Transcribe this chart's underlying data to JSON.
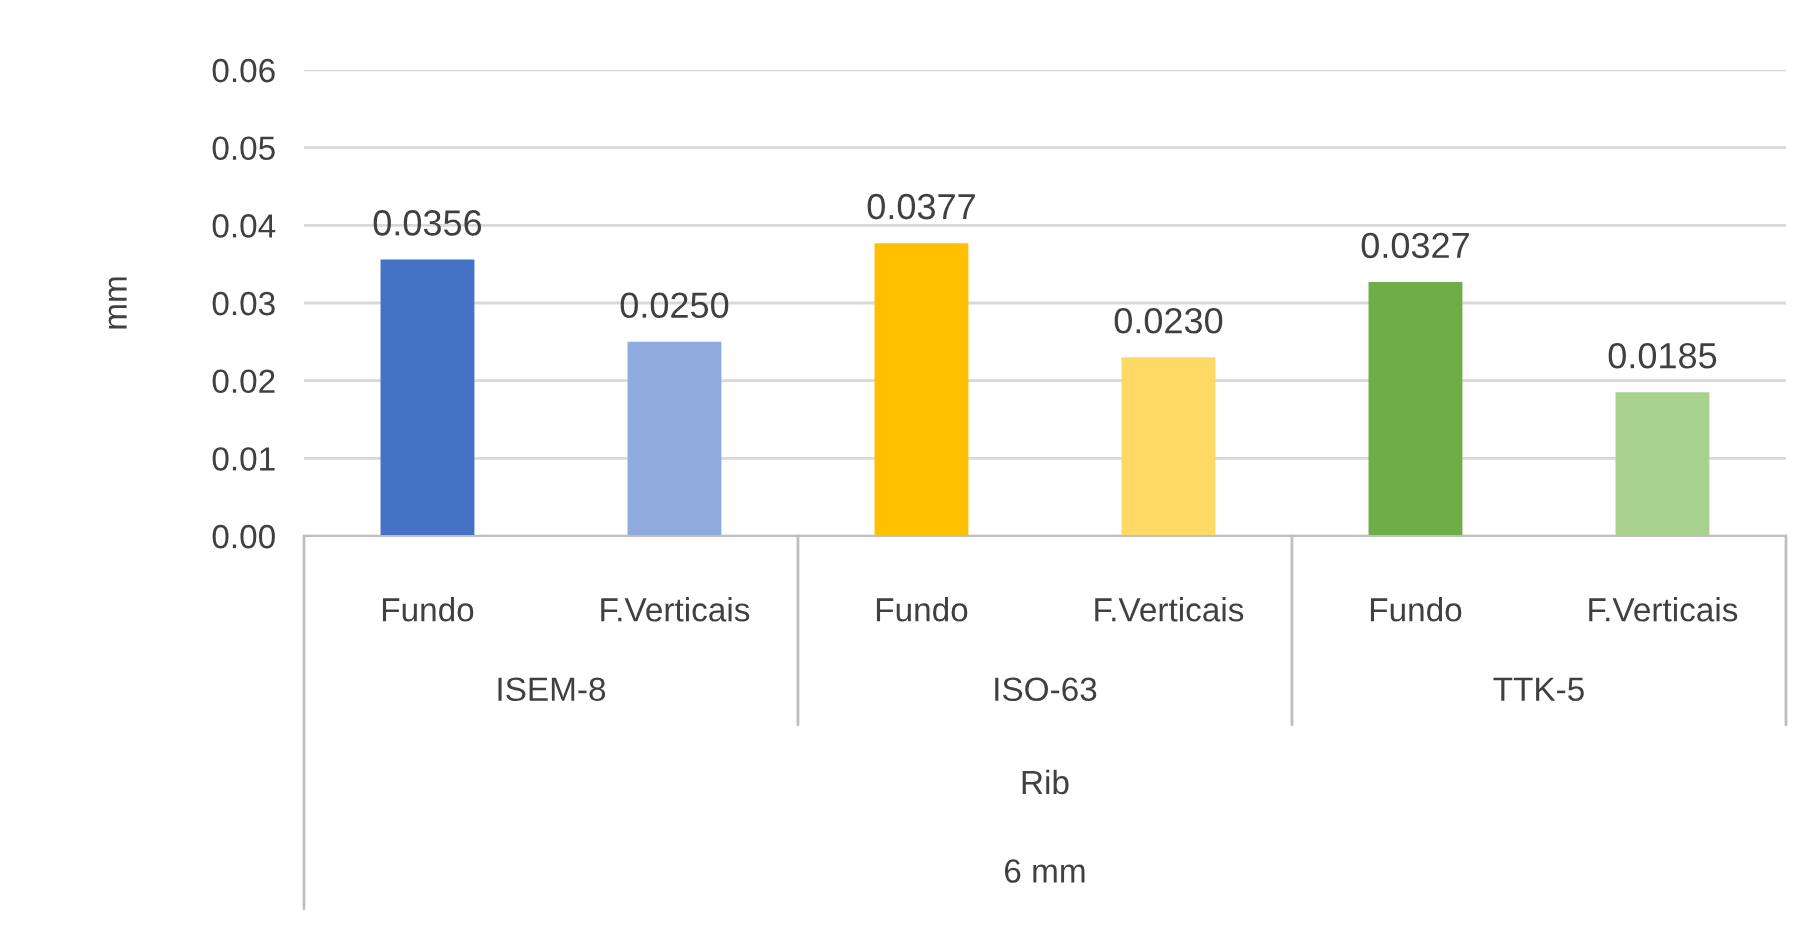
{
  "chart_data": {
    "type": "bar",
    "ylabel": "mm",
    "categories": [
      "Fundo",
      "F.Verticais",
      "Fundo",
      "F.Verticais",
      "Fundo",
      "F.Verticais"
    ],
    "values": [
      0.0356,
      0.025,
      0.0377,
      0.023,
      0.0327,
      0.0185
    ],
    "value_labels": [
      "0.0356",
      "0.0250",
      "0.0377",
      "0.0230",
      "0.0327",
      "0.0185"
    ],
    "colors": [
      "#4472c4",
      "#8faadc",
      "#ffc000",
      "#ffd966",
      "#70ad47",
      "#a9d18e"
    ],
    "ylim": [
      0,
      0.06
    ],
    "yticks": [
      {
        "value": 0,
        "label": "0.00"
      },
      {
        "value": 0.01,
        "label": "0.01"
      },
      {
        "value": 0.02,
        "label": "0.02"
      },
      {
        "value": 0.03,
        "label": "0.03"
      },
      {
        "value": 0.04,
        "label": "0.04"
      },
      {
        "value": 0.05,
        "label": "0.05"
      },
      {
        "value": 0.06,
        "label": "0.06"
      }
    ],
    "grid": "y",
    "annotations": [
      "ISEM-8",
      "ISO-63",
      "TTK-5",
      "Rib",
      "6 mm"
    ]
  }
}
